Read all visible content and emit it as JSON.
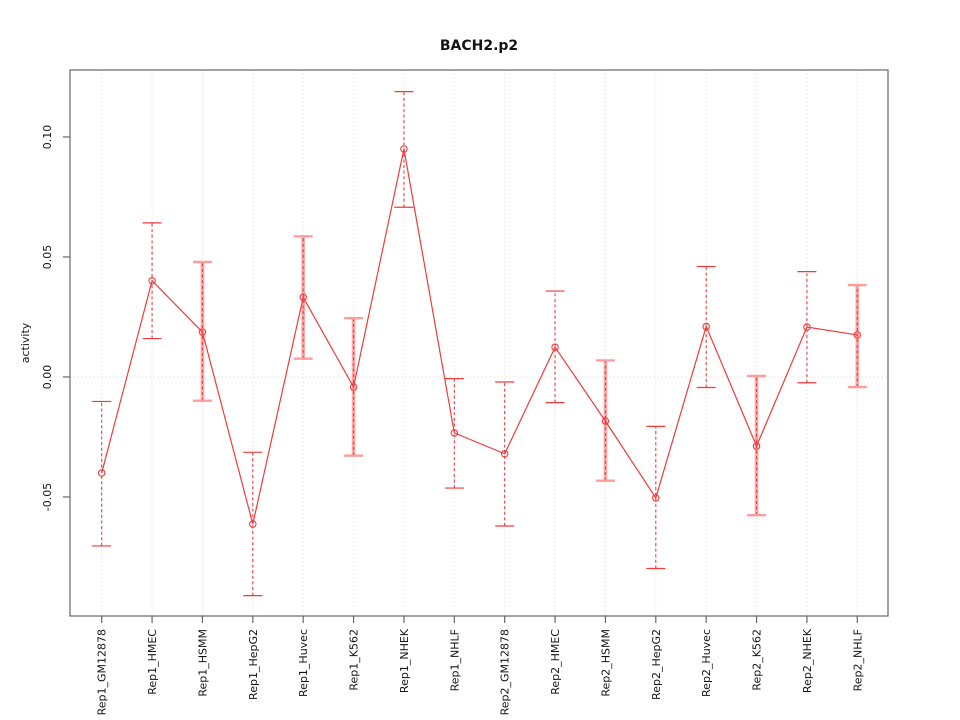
{
  "title": "BACH2.p2",
  "chart_data": {
    "type": "line",
    "title": "BACH2.p2",
    "xlabel": "",
    "ylabel": "activity",
    "categories": [
      "Rep1_GM12878",
      "Rep1_HMEC",
      "Rep1_HSMM",
      "Rep1_HepG2",
      "Rep1_Huvec",
      "Rep1_K562",
      "Rep1_NHEK",
      "Rep1_NHLF",
      "Rep2_GM12878",
      "Rep2_HMEC",
      "Rep2_HSMM",
      "Rep2_HepG2",
      "Rep2_Huvec",
      "Rep2_K562",
      "Rep2_NHEK",
      "Rep2_NHLF"
    ],
    "series": [
      {
        "name": "activity",
        "values": [
          -0.04,
          0.0401,
          0.0187,
          -0.0613,
          0.0332,
          -0.0042,
          0.095,
          -0.0233,
          -0.032,
          0.0124,
          -0.0184,
          -0.0504,
          0.021,
          -0.0288,
          0.0208,
          0.0175
        ],
        "err_high": [
          -0.0102,
          0.0642,
          0.0479,
          -0.0314,
          0.0586,
          0.0245,
          0.1189,
          -0.0007,
          -0.0021,
          0.0358,
          0.0069,
          -0.0206,
          0.046,
          0.0004,
          0.0439,
          0.0383
        ],
        "err_low": [
          -0.0704,
          0.016,
          -0.0099,
          -0.0911,
          0.0076,
          -0.0328,
          0.0707,
          -0.0463,
          -0.0621,
          -0.0107,
          -0.0432,
          -0.0798,
          -0.0044,
          -0.0576,
          -0.0024,
          -0.0042
        ],
        "thick_band": [
          false,
          false,
          true,
          false,
          true,
          true,
          false,
          false,
          false,
          false,
          true,
          false,
          false,
          true,
          false,
          true
        ]
      }
    ],
    "ytick_values": [
      -0.05,
      0.0,
      0.05,
      0.1
    ],
    "ytick_labels": [
      "-0.05",
      "0.00",
      "0.05",
      "0.10"
    ],
    "ylim": [
      -0.0996,
      0.1279
    ],
    "grid": {
      "vertical_at_categories": true,
      "horizontal_at_zero": true
    },
    "legend": null,
    "marker": "open-circle"
  },
  "colors": {
    "series_red": "#ef3b3b",
    "band_pink": "#ffa6a6",
    "cap_pink": "#ff9d9d",
    "grid_gray": "#d9d9d9",
    "axis_gray": "#666666",
    "text_black": "#141414",
    "background": "#ffffff"
  }
}
